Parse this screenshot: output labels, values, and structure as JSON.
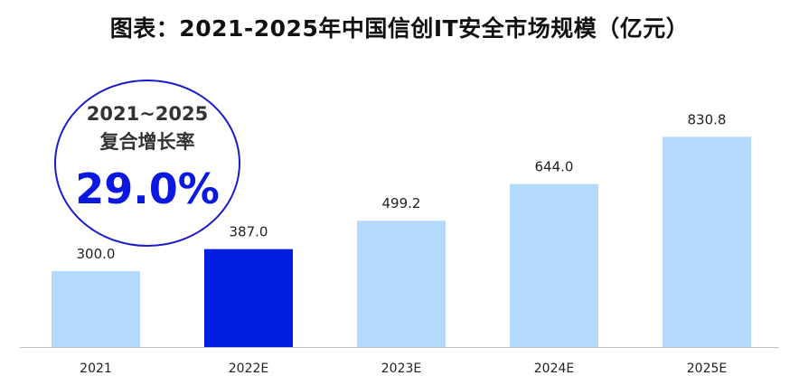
{
  "chart_data": {
    "type": "bar",
    "title": "图表：2021-2025年中国信创IT安全市场规模（亿元）",
    "categories": [
      "2021",
      "2022E",
      "2023E",
      "2024E",
      "2025E"
    ],
    "values": [
      300.0,
      387.0,
      499.2,
      644.0,
      830.8
    ],
    "value_labels": [
      "300.0",
      "387.0",
      "499.2",
      "644.0",
      "830.8"
    ],
    "highlight_index": 1,
    "ylim": [
      0,
      1000
    ],
    "grid": false,
    "legend": "none",
    "colors": {
      "bar": "#b3dafd",
      "highlight": "#001ee0",
      "axis": "#c0c0c0",
      "cagr": "#0a18e0"
    }
  },
  "cagr": {
    "period": "2021~2025",
    "label": "复合增长率",
    "value": "29.0%"
  }
}
